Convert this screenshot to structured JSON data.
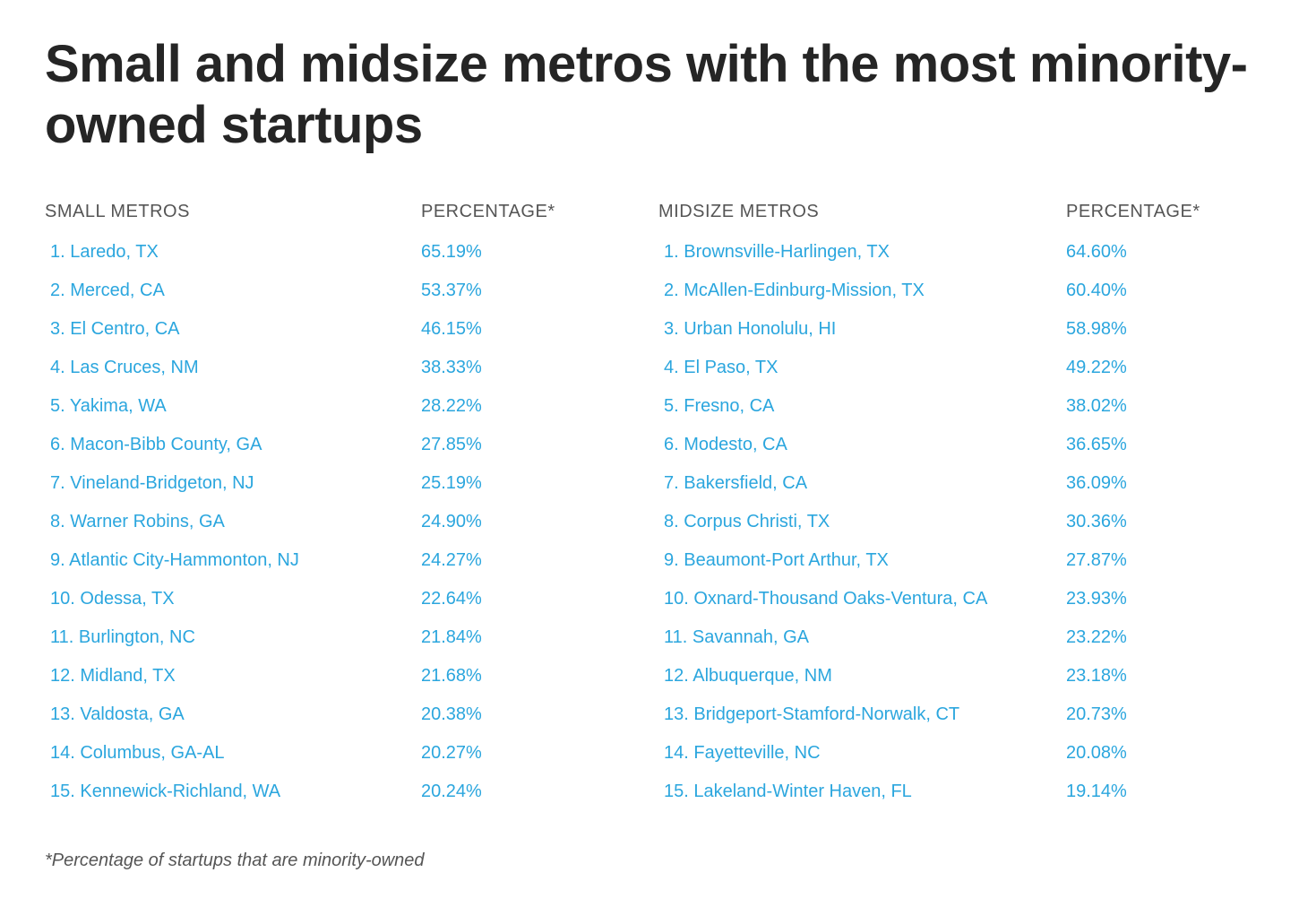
{
  "title": "Small and midsize metros with the most minority-owned startups",
  "footnote": "*Percentage of startups that are minority-owned",
  "colors": {
    "title": "#252525",
    "header_text": "#555555",
    "data_text": "#2ba6de",
    "footnote_text": "#555555",
    "background": "#ffffff"
  },
  "typography": {
    "title_fontsize": 58,
    "title_weight": 700,
    "header_fontsize": 20,
    "row_fontsize": 20,
    "footnote_fontsize": 20
  },
  "layout": {
    "row_vpadding": 10,
    "table_gap": 90,
    "small_table_width": 595,
    "mid_table_width": 630,
    "pct_col_width": 175
  },
  "small": {
    "header_name": "SMALL METROS",
    "header_pct": "PERCENTAGE*",
    "rows": [
      {
        "name": "1. Laredo, TX",
        "pct": "65.19%"
      },
      {
        "name": "2. Merced, CA",
        "pct": "53.37%"
      },
      {
        "name": "3. El Centro, CA",
        "pct": "46.15%"
      },
      {
        "name": "4. Las Cruces, NM",
        "pct": "38.33%"
      },
      {
        "name": "5. Yakima, WA",
        "pct": "28.22%"
      },
      {
        "name": "6. Macon-Bibb County, GA",
        "pct": "27.85%"
      },
      {
        "name": "7. Vineland-Bridgeton, NJ",
        "pct": "25.19%"
      },
      {
        "name": "8. Warner Robins, GA",
        "pct": "24.90%"
      },
      {
        "name": "9. Atlantic City-Hammonton, NJ",
        "pct": "24.27%"
      },
      {
        "name": "10. Odessa, TX",
        "pct": "22.64%"
      },
      {
        "name": "11. Burlington, NC",
        "pct": "21.84%"
      },
      {
        "name": "12. Midland, TX",
        "pct": "21.68%"
      },
      {
        "name": "13. Valdosta, GA",
        "pct": "20.38%"
      },
      {
        "name": "14. Columbus, GA-AL",
        "pct": "20.27%"
      },
      {
        "name": "15. Kennewick-Richland, WA",
        "pct": "20.24%"
      }
    ]
  },
  "mid": {
    "header_name": "MIDSIZE METROS",
    "header_pct": "PERCENTAGE*",
    "rows": [
      {
        "name": "1. Brownsville-Harlingen, TX",
        "pct": "64.60%"
      },
      {
        "name": "2. McAllen-Edinburg-Mission, TX",
        "pct": "60.40%"
      },
      {
        "name": "3. Urban Honolulu, HI",
        "pct": "58.98%"
      },
      {
        "name": "4. El Paso, TX",
        "pct": "49.22%"
      },
      {
        "name": "5. Fresno, CA",
        "pct": "38.02%"
      },
      {
        "name": "6. Modesto, CA",
        "pct": "36.65%"
      },
      {
        "name": "7. Bakersfield, CA",
        "pct": "36.09%"
      },
      {
        "name": "8. Corpus Christi, TX",
        "pct": "30.36%"
      },
      {
        "name": "9. Beaumont-Port Arthur, TX",
        "pct": "27.87%"
      },
      {
        "name": "10. Oxnard-Thousand Oaks-Ventura, CA",
        "pct": "23.93%"
      },
      {
        "name": "11. Savannah, GA",
        "pct": "23.22%"
      },
      {
        "name": "12. Albuquerque, NM",
        "pct": "23.18%"
      },
      {
        "name": "13. Bridgeport-Stamford-Norwalk, CT",
        "pct": "20.73%"
      },
      {
        "name": "14. Fayetteville, NC",
        "pct": "20.08%"
      },
      {
        "name": "15. Lakeland-Winter Haven, FL",
        "pct": "19.14%"
      }
    ]
  }
}
